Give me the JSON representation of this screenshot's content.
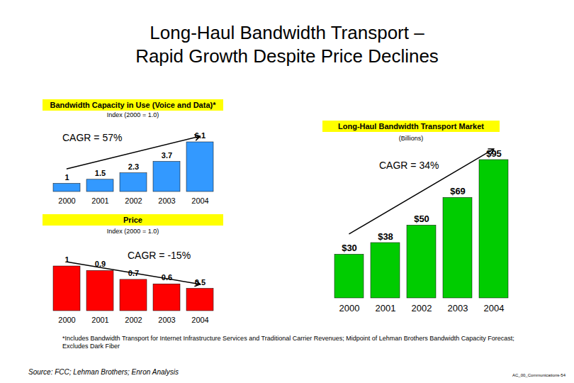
{
  "title": [
    "Long-Haul Bandwidth Transport –",
    "Rapid Growth Despite Price Declines"
  ],
  "chart_data": [
    {
      "type": "bar",
      "title": "Bandwidth Capacity in Use (Voice and Data)*",
      "subtitle": "Index (2000 = 1.0)",
      "annotation": "CAGR = 57%",
      "categories": [
        "2000",
        "2001",
        "2002",
        "2003",
        "2004"
      ],
      "values": [
        1,
        1.5,
        2.3,
        3.7,
        6.1
      ],
      "color": "#3399ff",
      "data_labels": true,
      "tick_labels": "x"
    },
    {
      "type": "bar",
      "title": "Price",
      "subtitle": "Index (2000 = 1.0)",
      "annotation": "CAGR = -15%",
      "categories": [
        "2000",
        "2001",
        "2002",
        "2003",
        "2004"
      ],
      "values": [
        1,
        0.9,
        0.7,
        0.6,
        0.5
      ],
      "color": "#ff0000",
      "data_labels": true,
      "tick_labels": "x"
    },
    {
      "type": "bar",
      "title": "Long-Haul Bandwidth Transport Market",
      "subtitle": "(Billions)",
      "annotation": "CAGR = 34%",
      "categories": [
        "2000",
        "2001",
        "2002",
        "2003",
        "2004"
      ],
      "values": [
        30,
        38,
        50,
        69,
        95
      ],
      "value_labels": [
        "$30",
        "$38",
        "$50",
        "$69",
        "$95"
      ],
      "color": "#00cc00",
      "data_labels": true,
      "tick_labels": "x"
    }
  ],
  "footnote": "*Includes Bandwidth Transport for Internet Infrastructure Services and Traditional Carrier Revenues; Midpoint of Lehman Brothers Bandwidth Capacity Forecast; Excludes Dark Fiber",
  "source": "Source: FCC; Lehman Brothers; Enron Analysis",
  "page_id": "AC_00_Communications-54"
}
